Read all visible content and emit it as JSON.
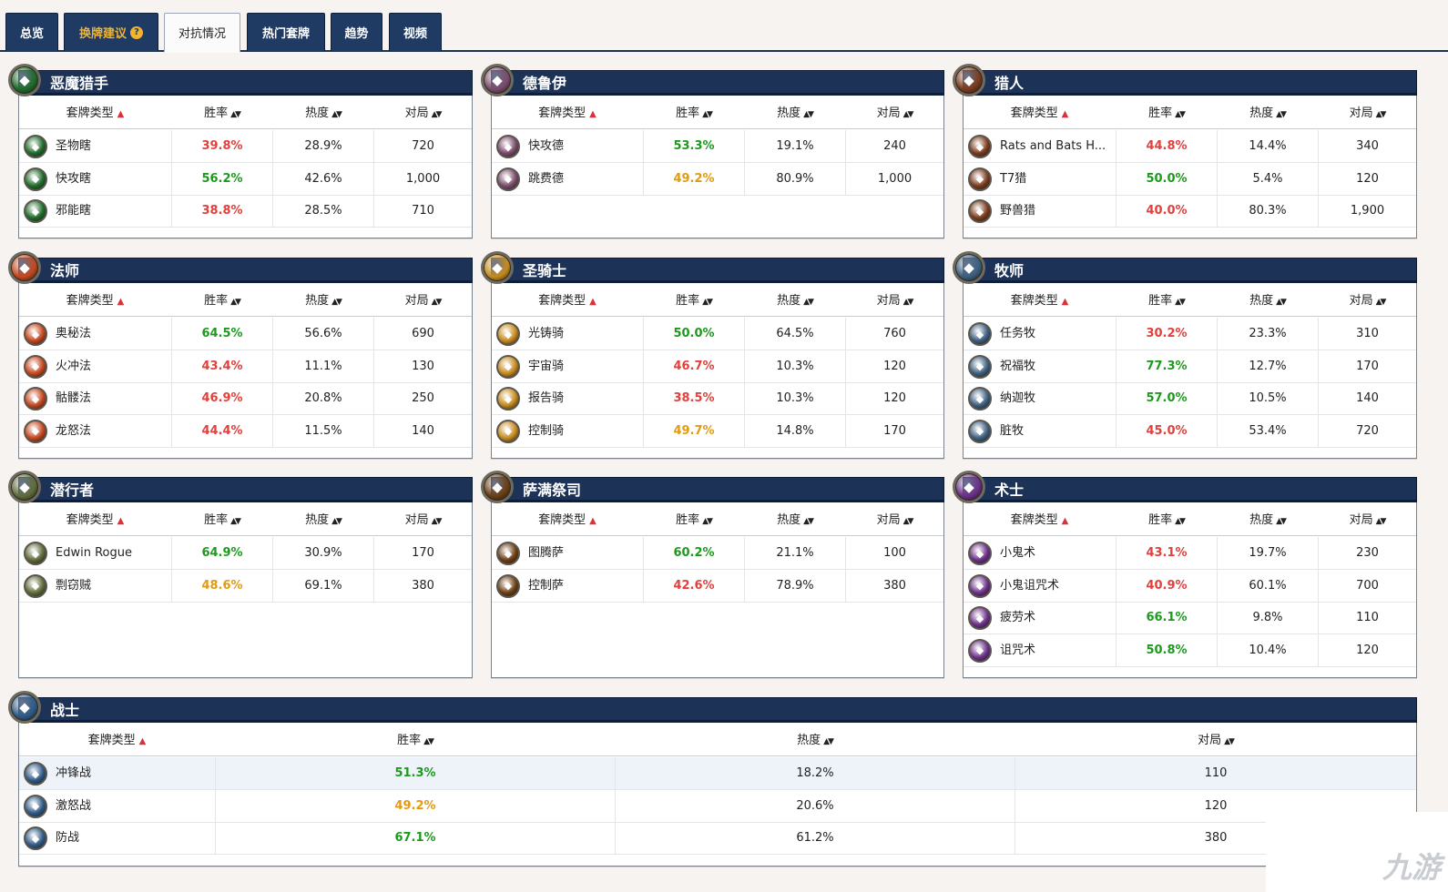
{
  "tabs": [
    {
      "label": "总览",
      "style": "normal"
    },
    {
      "label": "换牌建议",
      "style": "gold",
      "help": "?"
    },
    {
      "label": "对抗情况",
      "style": "active"
    },
    {
      "label": "热门套牌",
      "style": "normal"
    },
    {
      "label": "趋势",
      "style": "normal"
    },
    {
      "label": "视频",
      "style": "normal"
    }
  ],
  "columns": {
    "deck": "套牌类型",
    "winrate": "胜率",
    "popularity": "热度",
    "games": "对局"
  },
  "sort": {
    "asc": "▲",
    "both": "▲▼"
  },
  "colors": {
    "green": "#1d9a1d",
    "red": "#e1403c",
    "orange": "#e19a12",
    "header": "#1c3257"
  },
  "panels": [
    {
      "name": "恶魔猎手",
      "icon": "demon-hunter-icon",
      "color": "#1f6b2a",
      "decks": [
        {
          "name": "圣物瞎",
          "winrate": "39.8%",
          "wr": "red",
          "popularity": "28.9%",
          "games": "720"
        },
        {
          "name": "快攻瞎",
          "winrate": "56.2%",
          "wr": "green",
          "popularity": "42.6%",
          "games": "1,000"
        },
        {
          "name": "邪能瞎",
          "winrate": "38.8%",
          "wr": "red",
          "popularity": "28.5%",
          "games": "710"
        }
      ]
    },
    {
      "name": "德鲁伊",
      "icon": "druid-icon",
      "color": "#7a4b6b",
      "decks": [
        {
          "name": "快攻德",
          "winrate": "53.3%",
          "wr": "green",
          "popularity": "19.1%",
          "games": "240"
        },
        {
          "name": "跳费德",
          "winrate": "49.2%",
          "wr": "orange",
          "popularity": "80.9%",
          "games": "1,000"
        }
      ]
    },
    {
      "name": "猎人",
      "icon": "hunter-icon",
      "color": "#7a3a1c",
      "decks": [
        {
          "name": "Rats and Bats H...",
          "winrate": "44.8%",
          "wr": "red",
          "popularity": "14.4%",
          "games": "340"
        },
        {
          "name": "T7猎",
          "winrate": "50.0%",
          "wr": "green",
          "popularity": "5.4%",
          "games": "120"
        },
        {
          "name": "野兽猎",
          "winrate": "40.0%",
          "wr": "red",
          "popularity": "80.3%",
          "games": "1,900"
        }
      ]
    },
    {
      "name": "法师",
      "icon": "mage-icon",
      "color": "#c4471e",
      "decks": [
        {
          "name": "奥秘法",
          "winrate": "64.5%",
          "wr": "green",
          "popularity": "56.6%",
          "games": "690"
        },
        {
          "name": "火冲法",
          "winrate": "43.4%",
          "wr": "red",
          "popularity": "11.1%",
          "games": "130"
        },
        {
          "name": "骷髅法",
          "winrate": "46.9%",
          "wr": "red",
          "popularity": "20.8%",
          "games": "250"
        },
        {
          "name": "龙怒法",
          "winrate": "44.4%",
          "wr": "red",
          "popularity": "11.5%",
          "games": "140"
        }
      ]
    },
    {
      "name": "圣骑士",
      "icon": "paladin-icon",
      "color": "#c58a1e",
      "decks": [
        {
          "name": "光铸骑",
          "winrate": "50.0%",
          "wr": "green",
          "popularity": "64.5%",
          "games": "760"
        },
        {
          "name": "宇宙骑",
          "winrate": "46.7%",
          "wr": "red",
          "popularity": "10.3%",
          "games": "120"
        },
        {
          "name": "报告骑",
          "winrate": "38.5%",
          "wr": "red",
          "popularity": "10.3%",
          "games": "120"
        },
        {
          "name": "控制骑",
          "winrate": "49.7%",
          "wr": "orange",
          "popularity": "14.8%",
          "games": "170"
        }
      ]
    },
    {
      "name": "牧师",
      "icon": "priest-icon",
      "color": "#3d5e7e",
      "decks": [
        {
          "name": "任务牧",
          "winrate": "30.2%",
          "wr": "red",
          "popularity": "23.3%",
          "games": "310"
        },
        {
          "name": "祝福牧",
          "winrate": "77.3%",
          "wr": "green",
          "popularity": "12.7%",
          "games": "170"
        },
        {
          "name": "纳迦牧",
          "winrate": "57.0%",
          "wr": "green",
          "popularity": "10.5%",
          "games": "140"
        },
        {
          "name": "脏牧",
          "winrate": "45.0%",
          "wr": "red",
          "popularity": "53.4%",
          "games": "720"
        }
      ]
    },
    {
      "name": "潜行者",
      "icon": "rogue-icon",
      "color": "#5f6b3a",
      "decks": [
        {
          "name": "Edwin Rogue",
          "winrate": "64.9%",
          "wr": "green",
          "popularity": "30.9%",
          "games": "170"
        },
        {
          "name": "剽窃贼",
          "winrate": "48.6%",
          "wr": "orange",
          "popularity": "69.1%",
          "games": "380"
        }
      ]
    },
    {
      "name": "萨满祭司",
      "icon": "shaman-icon",
      "color": "#6b3e14",
      "decks": [
        {
          "name": "图腾萨",
          "winrate": "60.2%",
          "wr": "green",
          "popularity": "21.1%",
          "games": "100"
        },
        {
          "name": "控制萨",
          "winrate": "42.6%",
          "wr": "red",
          "popularity": "78.9%",
          "games": "380"
        }
      ]
    },
    {
      "name": "术士",
      "icon": "warlock-icon",
      "color": "#6a2f86",
      "decks": [
        {
          "name": "小鬼术",
          "winrate": "43.1%",
          "wr": "red",
          "popularity": "19.7%",
          "games": "230"
        },
        {
          "name": "小鬼诅咒术",
          "winrate": "40.9%",
          "wr": "red",
          "popularity": "60.1%",
          "games": "700"
        },
        {
          "name": "疲劳术",
          "winrate": "66.1%",
          "wr": "green",
          "popularity": "9.8%",
          "games": "110"
        },
        {
          "name": "诅咒术",
          "winrate": "50.8%",
          "wr": "green",
          "popularity": "10.4%",
          "games": "120"
        }
      ]
    },
    {
      "name": "战士",
      "icon": "warrior-icon",
      "color": "#2f5a86",
      "decks": [
        {
          "name": "冲锋战",
          "winrate": "51.3%",
          "wr": "green",
          "popularity": "18.2%",
          "games": "110",
          "highlight": true
        },
        {
          "name": "激怒战",
          "winrate": "49.2%",
          "wr": "orange",
          "popularity": "20.6%",
          "games": "120"
        },
        {
          "name": "防战",
          "winrate": "67.1%",
          "wr": "green",
          "popularity": "61.2%",
          "games": "380"
        }
      ]
    }
  ],
  "watermark": "九游"
}
